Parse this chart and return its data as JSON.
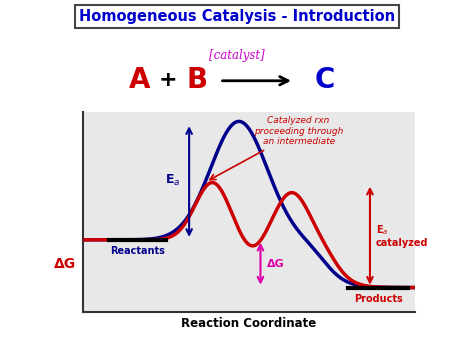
{
  "title": "Homogeneous Catalysis - Introduction",
  "title_color": "#0000CC",
  "catalyst_text": "[catalyst]",
  "catalyst_color": "#CC00CC",
  "blue_curve_color": "#00008B",
  "red_curve_color": "#CC0000",
  "reactant_level": 0.38,
  "product_level": 0.13,
  "xlabel": "Reaction Coordinate",
  "annotation_catalyzed": "Catalyzed rxn\nproceeding through\nan intermediate",
  "annotation_color": "#CC0000",
  "bg_color": "#e8e8e8"
}
